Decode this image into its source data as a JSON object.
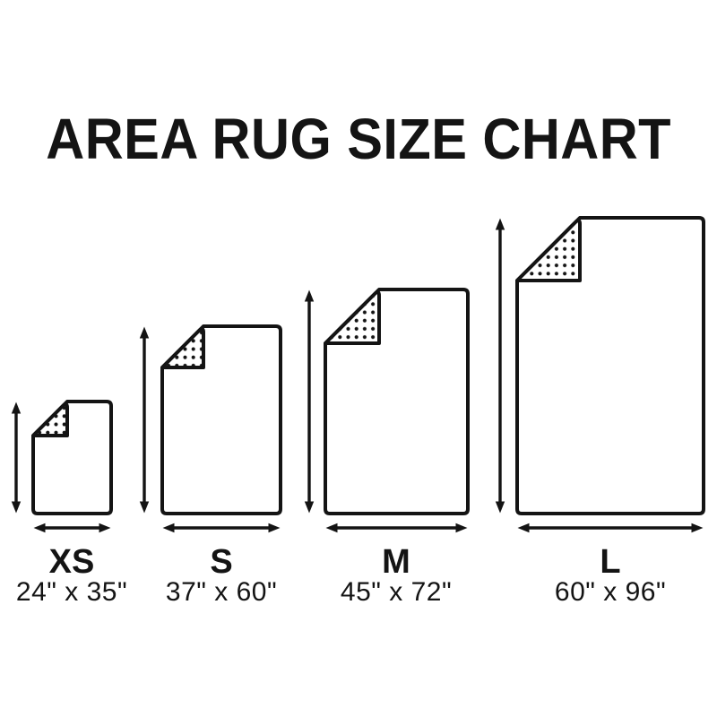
{
  "title": "AREA RUG SIZE CHART",
  "colors": {
    "ink": "#141414",
    "background": "#ffffff"
  },
  "sizes": [
    {
      "label": "XS",
      "dimensions": "24\" x 35\"",
      "width_in": 24,
      "height_in": 35
    },
    {
      "label": "S",
      "dimensions": "37\" x 60\"",
      "width_in": 37,
      "height_in": 60
    },
    {
      "label": "M",
      "dimensions": "45\" x 72\"",
      "width_in": 45,
      "height_in": 72
    },
    {
      "label": "L",
      "dimensions": "60\" x 96\"",
      "width_in": 60,
      "height_in": 96
    }
  ],
  "chart_data": {
    "type": "table",
    "title": "AREA RUG SIZE CHART",
    "categories": [
      "XS",
      "S",
      "M",
      "L"
    ],
    "series": [
      {
        "name": "width_inches",
        "values": [
          24,
          37,
          45,
          60
        ]
      },
      {
        "name": "height_inches",
        "values": [
          35,
          60,
          72,
          96
        ]
      }
    ]
  }
}
